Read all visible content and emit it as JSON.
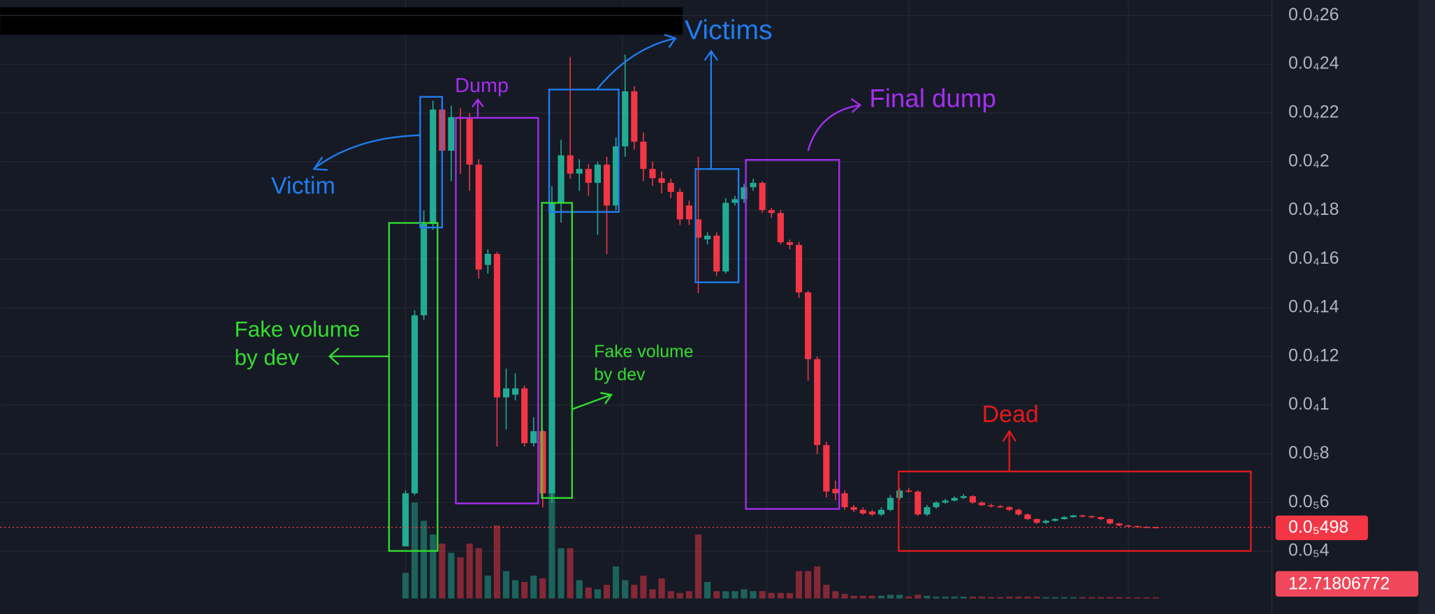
{
  "chart_data": {
    "type": "candlestick",
    "ylim": [
      2.06e-06,
      2.664e-05
    ],
    "yticks": [
      {
        "value": 2.6e-05,
        "label": "0.0₄26"
      },
      {
        "value": 2.4e-05,
        "label": "0.0₄24"
      },
      {
        "value": 2.2e-05,
        "label": "0.0₄22"
      },
      {
        "value": 2e-05,
        "label": "0.0₄2"
      },
      {
        "value": 1.8e-05,
        "label": "0.0₄18"
      },
      {
        "value": 1.6e-05,
        "label": "0.0₄16"
      },
      {
        "value": 1.4e-05,
        "label": "0.0₄14"
      },
      {
        "value": 1.2e-05,
        "label": "0.0₄12"
      },
      {
        "value": 1e-05,
        "label": "0.0₄1"
      },
      {
        "value": 8e-06,
        "label": "0.0₅8"
      },
      {
        "value": 6e-06,
        "label": "0.0₅6"
      },
      {
        "value": 4e-06,
        "label": "0.0₅4"
      }
    ],
    "grid": true,
    "up_color": "#22ab94",
    "down_color": "#f23645",
    "open": [
      4.2e-06,
      6.38e-06,
      1.369e-05,
      1.744e-05,
      2.214e-05,
      2.045e-05,
      2.183e-05,
      2.176e-05,
      1.988e-05,
      1.576e-05,
      1.621e-05,
      1.032e-05,
      1.043e-05,
      1.069e-05,
      8.44e-06,
      8.93e-06,
      6.38e-06,
      1.831e-05,
      2.026e-05,
      1.951e-05,
      1.97e-05,
      1.913e-05,
      1.988e-05,
      1.82e-05,
      2.063e-05,
      2.289e-05,
      2.082e-05,
      1.97e-05,
      1.932e-05,
      1.913e-05,
      1.876e-05,
      1.82e-05,
      1.763e-05,
      1.681e-05,
      1.696e-05,
      1.549e-05,
      1.831e-05,
      1.846e-05,
      1.895e-05,
      1.913e-05,
      1.801e-05,
      1.789e-05,
      1.669e-05,
      1.658e-05,
      1.463e-05,
      1.189e-05,
      8.36e-06,
      6.56e-06,
      6.38e-06,
      5.81e-06,
      5.7e-06,
      5.63e-06,
      5.51e-06,
      5.7e-06,
      6.19e-06,
      6.49e-06,
      6.45e-06,
      5.51e-06,
      5.81e-06,
      6e-06,
      6.08e-06,
      6.19e-06,
      6.26e-06,
      6e-06,
      5.89e-06,
      5.85e-06,
      5.81e-06,
      5.7e-06,
      5.51e-06,
      5.32e-06,
      5.17e-06,
      5.25e-06,
      5.32e-06,
      5.4e-06,
      5.47e-06,
      5.44e-06,
      5.4e-06,
      5.32e-06,
      5.14e-06,
      5.06e-06,
      5.03e-06,
      5e-06,
      4.99e-06
    ],
    "high": [
      6.5e-06,
      1.39e-05,
      1.8e-05,
      2.25e-05,
      2.24e-05,
      2.23e-05,
      2.22e-05,
      2.2e-05,
      2.01e-05,
      1.64e-05,
      1.63e-05,
      1.15e-05,
      1.13e-05,
      1.08e-05,
      9.5e-06,
      9e-06,
      1.9e-05,
      2.09e-05,
      2.43e-05,
      2.01e-05,
      1.99e-05,
      2e-05,
      2.02e-05,
      2.1e-05,
      2.44e-05,
      2.31e-05,
      2.12e-05,
      2e-05,
      1.96e-05,
      1.93e-05,
      1.89e-05,
      1.84e-05,
      2.02e-05,
      1.71e-05,
      1.71e-05,
      1.85e-05,
      1.86e-05,
      1.91e-05,
      1.93e-05,
      1.92e-05,
      1.81e-05,
      1.8e-05,
      1.68e-05,
      1.67e-05,
      1.47e-05,
      1.2e-05,
      8.5e-06,
      6.9e-06,
      6.5e-06,
      5.9e-06,
      5.8e-06,
      5.7e-06,
      5.8e-06,
      6.3e-06,
      6.6e-06,
      6.6e-06,
      6.5e-06,
      5.9e-06,
      6.05e-06,
      6.15e-06,
      6.25e-06,
      6.35e-06,
      6.3e-06,
      6.05e-06,
      5.95e-06,
      5.9e-06,
      5.85e-06,
      5.75e-06,
      5.55e-06,
      5.35e-06,
      5.3e-06,
      5.36e-06,
      5.44e-06,
      5.5e-06,
      5.5e-06,
      5.47e-06,
      5.42e-06,
      5.34e-06,
      5.16e-06,
      5.08e-06,
      5.05e-06,
      5.02e-06,
      5e-06
    ],
    "low": [
      4.2e-06,
      6.3e-06,
      1.35e-05,
      1.72e-05,
      1.9e-05,
      1.92e-05,
      1.95e-05,
      1.88e-05,
      1.52e-05,
      1.54e-05,
      8.3e-06,
      9e-06,
      1.02e-05,
      8.3e-06,
      8.3e-06,
      5.8e-06,
      6e-06,
      1.75e-05,
      1.93e-05,
      1.88e-05,
      1.86e-05,
      1.7e-05,
      1.62e-05,
      1.8e-05,
      2.02e-05,
      2.05e-05,
      1.92e-05,
      1.9e-05,
      1.87e-05,
      1.85e-05,
      1.74e-05,
      1.74e-05,
      1.46e-05,
      1.66e-05,
      1.53e-05,
      1.54e-05,
      1.82e-05,
      1.83e-05,
      1.88e-05,
      1.79e-05,
      1.77e-05,
      1.66e-05,
      1.64e-05,
      1.44e-05,
      1.1e-05,
      8e-06,
      6.2e-06,
      6.1e-06,
      5.7e-06,
      5.6e-06,
      5.5e-06,
      5.45e-06,
      5.45e-06,
      5.65e-06,
      6.1e-06,
      6.4e-06,
      5.45e-06,
      5.45e-06,
      5.75e-06,
      5.95e-06,
      6.05e-06,
      6.15e-06,
      5.95e-06,
      5.85e-06,
      5.8e-06,
      5.78e-06,
      5.65e-06,
      5.45e-06,
      5.28e-06,
      5.12e-06,
      5.12e-06,
      5.22e-06,
      5.3e-06,
      5.38e-06,
      5.4e-06,
      5.36e-06,
      5.28e-06,
      5.1e-06,
      5.03e-06,
      5e-06,
      4.98e-06,
      4.97e-06,
      4.96e-06
    ],
    "close": [
      6.38e-06,
      1.369e-05,
      1.744e-05,
      2.214e-05,
      2.045e-05,
      2.183e-05,
      2.176e-05,
      1.988e-05,
      1.557e-05,
      1.621e-05,
      1.032e-05,
      1.069e-05,
      1.069e-05,
      8.44e-06,
      8.93e-06,
      6.38e-06,
      1.831e-05,
      2.026e-05,
      1.951e-05,
      1.97e-05,
      1.913e-05,
      1.988e-05,
      1.82e-05,
      2.063e-05,
      2.289e-05,
      2.082e-05,
      1.97e-05,
      1.932e-05,
      1.913e-05,
      1.876e-05,
      1.763e-05,
      1.763e-05,
      1.688e-05,
      1.696e-05,
      1.549e-05,
      1.831e-05,
      1.846e-05,
      1.895e-05,
      1.913e-05,
      1.801e-05,
      1.789e-05,
      1.669e-05,
      1.658e-05,
      1.463e-05,
      1.189e-05,
      8.36e-06,
      6.45e-06,
      6.38e-06,
      5.81e-06,
      5.7e-06,
      5.55e-06,
      5.51e-06,
      5.7e-06,
      6.19e-06,
      6.49e-06,
      6.45e-06,
      5.51e-06,
      5.81e-06,
      6e-06,
      6.08e-06,
      6.19e-06,
      6.26e-06,
      6e-06,
      5.89e-06,
      5.85e-06,
      5.81e-06,
      5.7e-06,
      5.51e-06,
      5.32e-06,
      5.17e-06,
      5.25e-06,
      5.32e-06,
      5.4e-06,
      5.47e-06,
      5.44e-06,
      5.4e-06,
      5.32e-06,
      5.14e-06,
      5.06e-06,
      5.03e-06,
      5e-06,
      4.99e-06,
      4.98e-06
    ],
    "volume": [
      280,
      1050,
      850,
      700,
      600,
      500,
      450,
      600,
      550,
      250,
      800,
      300,
      200,
      180,
      250,
      220,
      1200,
      550,
      550,
      200,
      120,
      100,
      150,
      350,
      200,
      150,
      250,
      100,
      220,
      80,
      60,
      80,
      700,
      180,
      80,
      80,
      80,
      100,
      80,
      80,
      60,
      60,
      60,
      300,
      300,
      350,
      150,
      80,
      50,
      30,
      30,
      30,
      30,
      40,
      40,
      20,
      40,
      30,
      20,
      20,
      20,
      20,
      20,
      20,
      15,
      15,
      20,
      20,
      20,
      20,
      15,
      15,
      15,
      15,
      15,
      15,
      15,
      15,
      15,
      12,
      12,
      12,
      12.71806772
    ],
    "vlim": [
      0,
      6550
    ],
    "price_tag": {
      "value": 4.98e-06,
      "label": "0.0₅498"
    },
    "annotations": [
      {
        "lines": [
          "Victim"
        ],
        "color": "#1f7df0"
      },
      {
        "lines": [
          "Victims"
        ],
        "color": "#1f7df0"
      },
      {
        "lines": [
          "Dump"
        ],
        "color": "#a52ef0"
      },
      {
        "lines": [
          "Final dump"
        ],
        "color": "#a52ef0"
      },
      {
        "lines": [
          "Fake volume",
          "by dev"
        ],
        "color": "#33dd2f"
      },
      {
        "lines": [
          "Fake volume",
          "by dev"
        ],
        "color": "#33dd2f"
      },
      {
        "lines": [
          "Dead"
        ],
        "color": "#e3191c"
      }
    ]
  }
}
